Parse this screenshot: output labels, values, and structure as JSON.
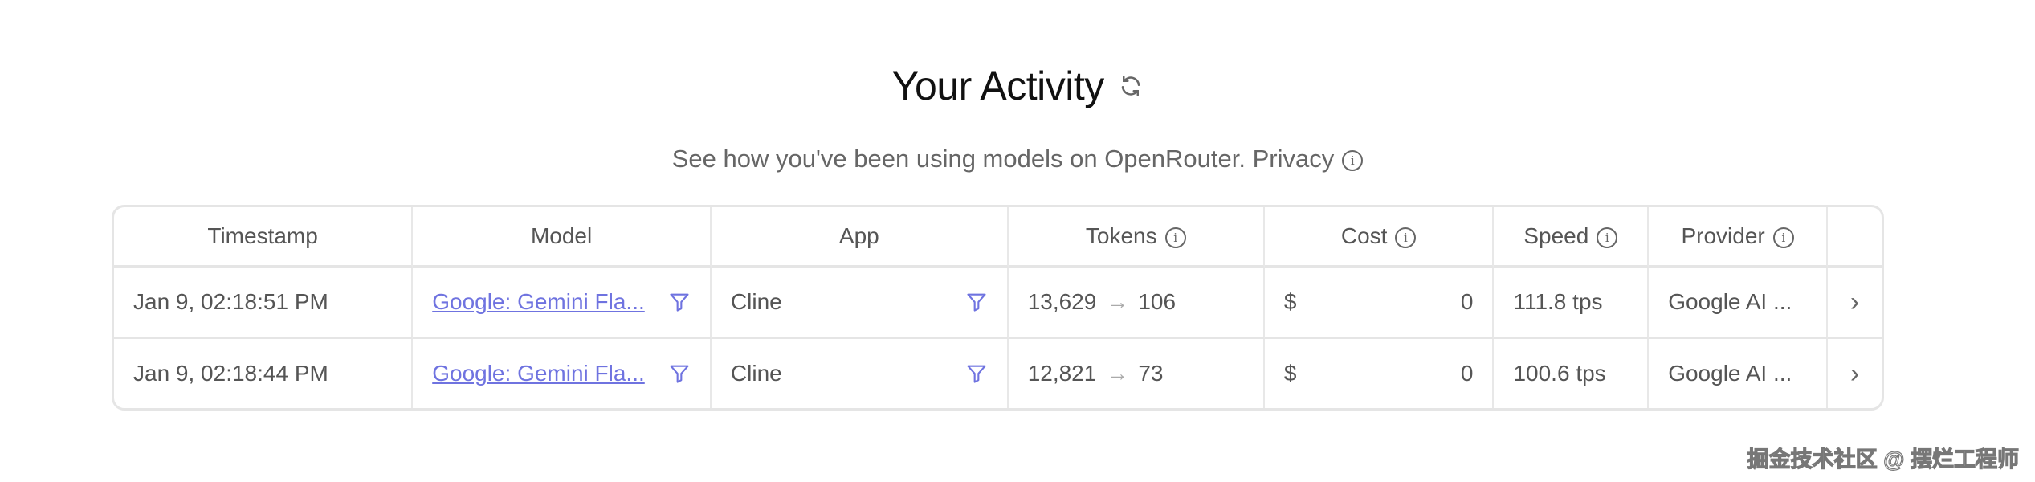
{
  "header": {
    "title": "Your Activity",
    "subtitle": "See how you've been using models on OpenRouter.",
    "privacy_link": "Privacy"
  },
  "table": {
    "columns": [
      "Timestamp",
      "Model",
      "App",
      "Tokens",
      "Cost",
      "Speed",
      "Provider"
    ],
    "rows": [
      {
        "timestamp": "Jan 9, 02:18:51 PM",
        "model": "Google: Gemini Fla...",
        "app": "Cline",
        "tokens_in": "13,629",
        "tokens_out": "106",
        "cost_currency": "$",
        "cost": "0",
        "speed": "111.8 tps",
        "provider": "Google AI ..."
      },
      {
        "timestamp": "Jan 9, 02:18:44 PM",
        "model": "Google: Gemini Fla...",
        "app": "Cline",
        "tokens_in": "12,821",
        "tokens_out": "73",
        "cost_currency": "$",
        "cost": "0",
        "speed": "100.6 tps",
        "provider": "Google AI ..."
      }
    ]
  },
  "icons": {
    "arrow": "→",
    "chevron": "›",
    "info": "i"
  },
  "colors": {
    "link": "#6f73e0",
    "text": "#555555"
  },
  "watermark": "掘金技术社区 @ 摆烂工程师"
}
